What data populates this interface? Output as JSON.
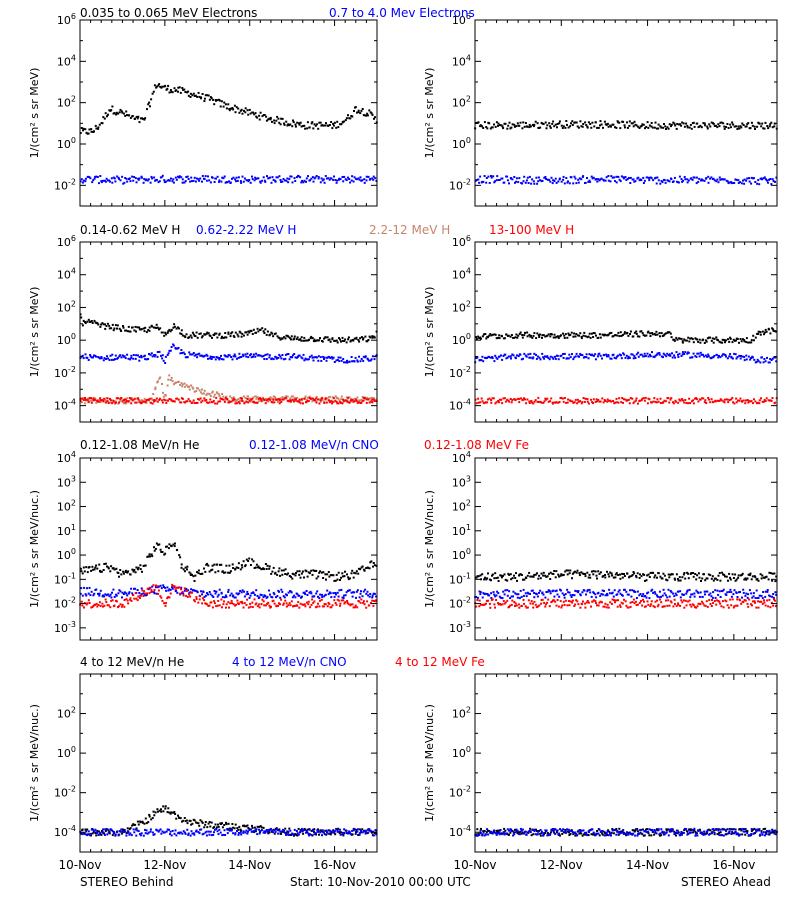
{
  "footer": {
    "left": "STEREO Behind",
    "center": "Start: 10-Nov-2010 00:00 UTC",
    "right": "STEREO Ahead"
  },
  "x_axis": {
    "tick_labels": [
      "10-Nov",
      "12-Nov",
      "14-Nov",
      "16-Nov"
    ],
    "tick_days": [
      10,
      12,
      14,
      16
    ],
    "range": [
      10,
      17
    ]
  },
  "colors": {
    "black": "#000000",
    "blue": "#0000ff",
    "tan": "#c8846a",
    "red": "#ff0000"
  },
  "rows": [
    {
      "ylabel": "1/(cm² s sr MeV)",
      "ylim_log10": [
        -3,
        6
      ],
      "yticks_log10": [
        -2,
        0,
        2,
        4,
        6
      ],
      "legend": [
        {
          "text": "0.035 to 0.065 MeV Electrons",
          "color": "#000000"
        },
        {
          "text": "0.7 to 4.0 Mev Electrons",
          "color": "#0000ff"
        }
      ]
    },
    {
      "ylabel": "1/(cm² s sr MeV)",
      "ylim_log10": [
        -5,
        6
      ],
      "yticks_log10": [
        -4,
        -2,
        0,
        2,
        4,
        6
      ],
      "legend": [
        {
          "text": "0.14-0.62 MeV H",
          "color": "#000000"
        },
        {
          "text": "0.62-2.22 MeV H",
          "color": "#0000ff"
        },
        {
          "text": "2.2-12 MeV H",
          "color": "#c8846a"
        },
        {
          "text": "13-100 MeV H",
          "color": "#ff0000"
        }
      ]
    },
    {
      "ylabel": "1/(cm² s sr MeV/nuc.)",
      "ylim_log10": [
        -3.5,
        4
      ],
      "yticks_log10": [
        -3,
        -2,
        -1,
        0,
        1,
        2,
        3,
        4
      ],
      "legend": [
        {
          "text": "0.12-1.08 MeV/n He",
          "color": "#000000"
        },
        {
          "text": "0.12-1.08 MeV/n CNO",
          "color": "#0000ff"
        },
        {
          "text": "0.12-1.08 MeV Fe",
          "color": "#ff0000"
        }
      ]
    },
    {
      "ylabel": "1/(cm² s sr MeV/nuc.)",
      "ylim_log10": [
        -5,
        4
      ],
      "yticks_log10": [
        -4,
        -2,
        0,
        2
      ],
      "legend": [
        {
          "text": "4 to 12 MeV/n He",
          "color": "#000000"
        },
        {
          "text": "4 to 12 MeV/n CNO",
          "color": "#0000ff"
        },
        {
          "text": "4 to 12 MeV Fe",
          "color": "#ff0000"
        }
      ]
    }
  ],
  "chart_data": [
    {
      "type": "scatter",
      "spacecraft": "STEREO Behind",
      "row": 0,
      "yscale": "log",
      "ylim_log10": [
        -3,
        6
      ],
      "x_units": "day of Nov-2010",
      "series": [
        {
          "name": "0.035 to 0.065 MeV Electrons",
          "color": "#000000",
          "x": [
            10.0,
            10.3,
            10.5,
            10.7,
            11.0,
            11.3,
            11.5,
            11.7,
            11.8,
            12.0,
            12.3,
            12.5,
            13.0,
            13.5,
            14.0,
            14.5,
            15.0,
            15.3,
            15.7,
            16.0,
            16.3,
            16.5,
            16.8,
            17.0
          ],
          "log10y": [
            0.6,
            0.6,
            1.0,
            1.7,
            1.5,
            1.2,
            1.1,
            2.3,
            2.9,
            2.7,
            2.6,
            2.5,
            2.2,
            1.8,
            1.5,
            1.2,
            1.0,
            0.9,
            0.9,
            0.9,
            1.2,
            1.7,
            1.5,
            1.1
          ]
        },
        {
          "name": "0.7 to 4.0 Mev Electrons",
          "color": "#0000ff",
          "x": [
            10.0,
            11.0,
            12.0,
            13.0,
            14.0,
            15.0,
            16.0,
            17.0
          ],
          "log10y": [
            -1.7,
            -1.75,
            -1.7,
            -1.7,
            -1.72,
            -1.7,
            -1.72,
            -1.7
          ]
        }
      ]
    },
    {
      "type": "scatter",
      "spacecraft": "STEREO Ahead",
      "row": 0,
      "yscale": "log",
      "ylim_log10": [
        -3,
        6
      ],
      "x_units": "day of Nov-2010",
      "series": [
        {
          "name": "0.035 to 0.065 MeV Electrons",
          "color": "#000000",
          "x": [
            10.0,
            11.0,
            12.0,
            13.0,
            14.0,
            15.0,
            16.0,
            17.0
          ],
          "log10y": [
            0.9,
            0.9,
            0.95,
            0.95,
            0.9,
            0.9,
            0.9,
            0.9
          ]
        },
        {
          "name": "0.7 to 4.0 Mev Electrons",
          "color": "#0000ff",
          "x": [
            10.0,
            11.0,
            12.0,
            13.0,
            14.0,
            15.0,
            16.0,
            17.0
          ],
          "log10y": [
            -1.7,
            -1.75,
            -1.75,
            -1.7,
            -1.75,
            -1.75,
            -1.75,
            -1.8
          ]
        }
      ]
    },
    {
      "type": "scatter",
      "spacecraft": "STEREO Behind",
      "row": 1,
      "yscale": "log",
      "ylim_log10": [
        -5,
        6
      ],
      "x_units": "day of Nov-2010",
      "series": [
        {
          "name": "0.14-0.62 MeV H",
          "color": "#000000",
          "x": [
            10.0,
            10.05,
            10.2,
            10.5,
            11.0,
            11.5,
            11.8,
            12.0,
            12.2,
            12.5,
            13.0,
            13.5,
            14.0,
            14.3,
            14.5,
            15.0,
            15.5,
            16.0,
            16.5,
            16.9,
            17.0
          ],
          "log10y": [
            2.0,
            1.0,
            1.1,
            0.9,
            0.7,
            0.6,
            0.8,
            0.3,
            0.9,
            0.3,
            0.3,
            0.3,
            0.4,
            0.6,
            0.3,
            0.1,
            0.1,
            0.0,
            0.0,
            0.1,
            0.5
          ]
        },
        {
          "name": "0.62-2.22 MeV H",
          "color": "#0000ff",
          "x": [
            10.0,
            10.5,
            11.0,
            11.5,
            11.9,
            12.0,
            12.2,
            12.5,
            13.0,
            14.0,
            15.0,
            16.0,
            16.5,
            16.9,
            17.0
          ],
          "log10y": [
            -1.0,
            -1.1,
            -1.0,
            -1.1,
            -0.8,
            -1.3,
            -0.4,
            -0.9,
            -1.0,
            -1.0,
            -1.0,
            -1.2,
            -1.2,
            -1.1,
            -1.0
          ]
        },
        {
          "name": "2.2-12 MeV H",
          "color": "#c8846a",
          "x": [
            11.7,
            11.8,
            11.9,
            12.0,
            12.1,
            12.2,
            12.3,
            12.5,
            12.8,
            13.0,
            13.3,
            13.5,
            13.7
          ],
          "log10y": [
            -3.7,
            -2.6,
            -2.4,
            -3.6,
            -2.3,
            -2.5,
            -2.7,
            -2.8,
            -3.1,
            -3.2,
            -3.4,
            -3.6,
            -3.6
          ]
        },
        {
          "name": "13-100 MeV H",
          "color": "#ff0000",
          "x": [
            10.0,
            11.0,
            12.0,
            13.0,
            14.0,
            15.0,
            16.0,
            17.0
          ],
          "log10y": [
            -3.7,
            -3.7,
            -3.7,
            -3.7,
            -3.7,
            -3.7,
            -3.7,
            -3.7
          ]
        }
      ]
    },
    {
      "type": "scatter",
      "spacecraft": "STEREO Ahead",
      "row": 1,
      "yscale": "log",
      "ylim_log10": [
        -5,
        6
      ],
      "x_units": "day of Nov-2010",
      "series": [
        {
          "name": "0.14-0.62 MeV H",
          "color": "#000000",
          "x": [
            10.0,
            11.0,
            12.0,
            13.0,
            14.0,
            14.5,
            14.6,
            15.0,
            16.0,
            16.4,
            16.6,
            17.0
          ],
          "log10y": [
            0.2,
            0.3,
            0.3,
            0.3,
            0.4,
            0.4,
            0.0,
            0.0,
            0.0,
            0.0,
            0.5,
            0.6
          ]
        },
        {
          "name": "0.62-2.22 MeV H",
          "color": "#0000ff",
          "x": [
            10.0,
            11.0,
            12.0,
            13.0,
            14.0,
            15.0,
            16.0,
            16.5,
            17.0
          ],
          "log10y": [
            -1.2,
            -1.0,
            -1.0,
            -1.0,
            -0.9,
            -0.9,
            -1.0,
            -1.2,
            -1.2
          ]
        },
        {
          "name": "13-100 MeV H",
          "color": "#ff0000",
          "x": [
            10.0,
            11.0,
            12.0,
            13.0,
            14.0,
            15.0,
            16.0,
            17.0
          ],
          "log10y": [
            -3.7,
            -3.7,
            -3.7,
            -3.7,
            -3.7,
            -3.7,
            -3.7,
            -3.7
          ]
        }
      ]
    },
    {
      "type": "scatter",
      "spacecraft": "STEREO Behind",
      "row": 2,
      "yscale": "log",
      "ylim_log10": [
        -3.5,
        4
      ],
      "x_units": "day of Nov-2010",
      "series": [
        {
          "name": "0.12-1.08 MeV/n He",
          "color": "#000000",
          "x": [
            10.0,
            10.3,
            10.7,
            11.0,
            11.5,
            11.8,
            12.0,
            12.2,
            12.4,
            12.7,
            13.0,
            13.5,
            14.0,
            14.5,
            15.0,
            15.5,
            16.0,
            16.5,
            16.9
          ],
          "log10y": [
            -0.7,
            -0.6,
            -0.5,
            -0.8,
            -0.5,
            0.4,
            0.1,
            0.6,
            -0.4,
            -0.9,
            -0.5,
            -0.6,
            -0.3,
            -0.6,
            -0.8,
            -0.8,
            -0.9,
            -0.8,
            -0.4
          ]
        },
        {
          "name": "0.12-1.08 MeV/n CNO",
          "color": "#0000ff",
          "x": [
            10.0,
            11.0,
            12.0,
            13.0,
            14.0,
            15.0,
            16.0,
            17.0
          ],
          "log10y": [
            -1.5,
            -1.6,
            -1.4,
            -1.6,
            -1.6,
            -1.6,
            -1.6,
            -1.6
          ]
        },
        {
          "name": "0.12-1.08 MeV Fe",
          "color": "#ff0000",
          "x": [
            10.0,
            11.0,
            11.8,
            12.0,
            12.2,
            13.0,
            14.0,
            15.0,
            16.0,
            17.0
          ],
          "log10y": [
            -2.0,
            -2.0,
            -1.3,
            -2.0,
            -1.3,
            -2.0,
            -2.0,
            -2.0,
            -2.0,
            -2.0
          ]
        }
      ]
    },
    {
      "type": "scatter",
      "spacecraft": "STEREO Ahead",
      "row": 2,
      "yscale": "log",
      "ylim_log10": [
        -3.5,
        4
      ],
      "x_units": "day of Nov-2010",
      "series": [
        {
          "name": "0.12-1.08 MeV/n He",
          "color": "#000000",
          "x": [
            10.0,
            11.0,
            12.0,
            13.0,
            14.0,
            15.0,
            16.0,
            17.0
          ],
          "log10y": [
            -0.9,
            -0.9,
            -0.8,
            -0.8,
            -0.9,
            -0.9,
            -0.9,
            -0.9
          ]
        },
        {
          "name": "0.12-1.08 MeV/n CNO",
          "color": "#0000ff",
          "x": [
            10.0,
            11.0,
            12.0,
            13.0,
            14.0,
            15.0,
            16.0,
            17.0
          ],
          "log10y": [
            -1.6,
            -1.6,
            -1.6,
            -1.6,
            -1.6,
            -1.6,
            -1.6,
            -1.6
          ]
        },
        {
          "name": "0.12-1.08 MeV Fe",
          "color": "#ff0000",
          "x": [
            10.0,
            11.0,
            12.0,
            13.0,
            14.0,
            15.0,
            16.0,
            17.0
          ],
          "log10y": [
            -2.0,
            -2.0,
            -2.0,
            -2.0,
            -2.0,
            -2.0,
            -2.0,
            -2.0
          ]
        }
      ]
    },
    {
      "type": "scatter",
      "spacecraft": "STEREO Behind",
      "row": 3,
      "yscale": "log",
      "ylim_log10": [
        -5,
        4
      ],
      "x_units": "day of Nov-2010",
      "series": [
        {
          "name": "4 to 12 MeV/n He",
          "color": "#000000",
          "x": [
            10.0,
            11.0,
            11.5,
            11.8,
            12.0,
            12.3,
            12.6,
            13.0,
            14.0,
            15.0,
            16.0,
            17.0
          ],
          "log10y": [
            -4.0,
            -4.0,
            -3.5,
            -3.0,
            -2.8,
            -3.2,
            -3.5,
            -3.6,
            -3.8,
            -4.0,
            -4.0,
            -4.0
          ]
        },
        {
          "name": "4 to 12 MeV/n CNO",
          "color": "#0000ff",
          "x": [
            10.0,
            12.0,
            14.0,
            16.0,
            17.0
          ],
          "log10y": [
            -4.0,
            -4.0,
            -4.0,
            -4.0,
            -4.0
          ]
        }
      ]
    },
    {
      "type": "scatter",
      "spacecraft": "STEREO Ahead",
      "row": 3,
      "yscale": "log",
      "ylim_log10": [
        -5,
        4
      ],
      "x_units": "day of Nov-2010",
      "series": [
        {
          "name": "4 to 12 MeV/n He",
          "color": "#000000",
          "x": [
            10.0,
            12.0,
            14.0,
            16.0,
            17.0
          ],
          "log10y": [
            -4.0,
            -4.0,
            -4.0,
            -4.0,
            -4.0
          ]
        },
        {
          "name": "4 to 12 MeV/n CNO",
          "color": "#0000ff",
          "x": [
            10.0,
            12.0,
            14.0,
            16.0,
            17.0
          ],
          "log10y": [
            -4.0,
            -4.0,
            -4.0,
            -4.0,
            -4.0
          ]
        }
      ]
    }
  ]
}
